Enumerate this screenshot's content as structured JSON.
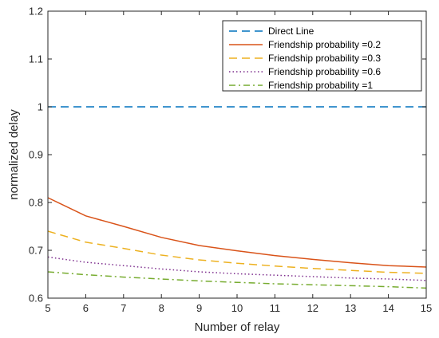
{
  "chart_data": {
    "type": "line",
    "xlabel": "Number of relay",
    "ylabel": "normalized delay",
    "xlim": [
      5,
      15
    ],
    "ylim": [
      0.6,
      1.2
    ],
    "xticks": [
      5,
      6,
      7,
      8,
      9,
      10,
      11,
      12,
      13,
      14,
      15
    ],
    "yticks": [
      0.6,
      0.7,
      0.8,
      0.9,
      1,
      1.1,
      1.2
    ],
    "xtick_labels": [
      "5",
      "6",
      "7",
      "8",
      "9",
      "10",
      "11",
      "12",
      "13",
      "14",
      "15"
    ],
    "ytick_labels": [
      "0.6",
      "0.7",
      "0.8",
      "0.9",
      "1",
      "1.1",
      "1.2"
    ],
    "grid": false,
    "legend_position": "top-right",
    "x": [
      5,
      6,
      7,
      8,
      9,
      10,
      11,
      12,
      13,
      14,
      15
    ],
    "series": [
      {
        "name": "Direct Line",
        "color": "#0072BD",
        "dash": "dashed",
        "values": [
          1,
          1,
          1,
          1,
          1,
          1,
          1,
          1,
          1,
          1,
          1
        ]
      },
      {
        "name": "Friendship probability =0.2",
        "color": "#D95319",
        "dash": "solid",
        "values": [
          0.81,
          0.772,
          0.75,
          0.727,
          0.71,
          0.699,
          0.689,
          0.681,
          0.674,
          0.668,
          0.665
        ]
      },
      {
        "name": "Friendship probability =0.3",
        "color": "#EDB120",
        "dash": "dashed",
        "values": [
          0.74,
          0.717,
          0.704,
          0.69,
          0.68,
          0.673,
          0.667,
          0.662,
          0.658,
          0.654,
          0.652
        ]
      },
      {
        "name": "Friendship probability =0.6",
        "color": "#7E2F8E",
        "dash": "dotted",
        "values": [
          0.686,
          0.675,
          0.668,
          0.661,
          0.655,
          0.651,
          0.648,
          0.645,
          0.642,
          0.64,
          0.637
        ]
      },
      {
        "name": "Friendship probability =1",
        "color": "#77AC30",
        "dash": "dashdot",
        "values": [
          0.655,
          0.649,
          0.644,
          0.64,
          0.636,
          0.633,
          0.63,
          0.628,
          0.626,
          0.624,
          0.621
        ]
      }
    ]
  }
}
